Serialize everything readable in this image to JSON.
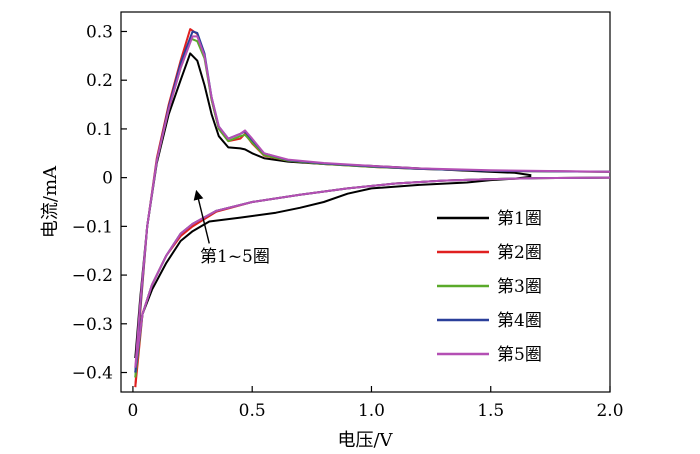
{
  "chart_data": {
    "type": "line",
    "title": "",
    "xlabel": "电压/V",
    "ylabel": "电流/mA",
    "xlim": [
      -0.05,
      2.0
    ],
    "ylim": [
      -0.44,
      0.34
    ],
    "xticks": [
      0,
      0.5,
      1.0,
      1.5,
      2.0
    ],
    "xtick_labels": [
      "0",
      "0.5",
      "1.0",
      "1.5",
      "2.0"
    ],
    "yticks": [
      -0.4,
      -0.3,
      -0.2,
      -0.1,
      0,
      0.1,
      0.2,
      0.3
    ],
    "ytick_labels": [
      "−0.4",
      "−0.3",
      "−0.2",
      "−0.1",
      "0",
      "0.1",
      "0.2",
      "0.3"
    ],
    "grid": false,
    "legend_position": "right",
    "annotation": {
      "text": "第1~5圈",
      "arrow_from": [
        0.32,
        -0.135
      ],
      "arrow_to": [
        0.27,
        -0.035
      ]
    },
    "series": [
      {
        "name": "第1圈",
        "color": "#000000",
        "upper": [
          [
            0.01,
            -0.37
          ],
          [
            0.03,
            -0.25
          ],
          [
            0.06,
            -0.1
          ],
          [
            0.1,
            0.03
          ],
          [
            0.15,
            0.13
          ],
          [
            0.2,
            0.2
          ],
          [
            0.24,
            0.255
          ],
          [
            0.27,
            0.24
          ],
          [
            0.3,
            0.19
          ],
          [
            0.33,
            0.13
          ],
          [
            0.36,
            0.085
          ],
          [
            0.4,
            0.062
          ],
          [
            0.45,
            0.06
          ],
          [
            0.47,
            0.058
          ],
          [
            0.5,
            0.05
          ],
          [
            0.55,
            0.04
          ],
          [
            0.65,
            0.033
          ],
          [
            0.8,
            0.028
          ],
          [
            1.0,
            0.024
          ],
          [
            1.2,
            0.019
          ],
          [
            1.4,
            0.014
          ],
          [
            1.6,
            0.01
          ],
          [
            1.67,
            0.005
          ]
        ],
        "lower": [
          [
            0.01,
            -0.37
          ],
          [
            0.04,
            -0.28
          ],
          [
            0.08,
            -0.23
          ],
          [
            0.14,
            -0.175
          ],
          [
            0.2,
            -0.13
          ],
          [
            0.25,
            -0.11
          ],
          [
            0.32,
            -0.09
          ],
          [
            0.45,
            -0.082
          ],
          [
            0.6,
            -0.072
          ],
          [
            0.7,
            -0.062
          ],
          [
            0.8,
            -0.05
          ],
          [
            0.9,
            -0.033
          ],
          [
            1.0,
            -0.022
          ],
          [
            1.2,
            -0.015
          ],
          [
            1.4,
            -0.01
          ],
          [
            1.5,
            -0.005
          ],
          [
            1.6,
            -0.002
          ],
          [
            1.67,
            0.002
          ]
        ]
      },
      {
        "name": "第2圈",
        "color": "#e02020",
        "upper": [
          [
            0.01,
            -0.43
          ],
          [
            0.03,
            -0.28
          ],
          [
            0.06,
            -0.1
          ],
          [
            0.1,
            0.04
          ],
          [
            0.15,
            0.15
          ],
          [
            0.2,
            0.24
          ],
          [
            0.24,
            0.305
          ],
          [
            0.27,
            0.295
          ],
          [
            0.3,
            0.25
          ],
          [
            0.33,
            0.16
          ],
          [
            0.36,
            0.1
          ],
          [
            0.4,
            0.075
          ],
          [
            0.45,
            0.08
          ],
          [
            0.47,
            0.09
          ],
          [
            0.5,
            0.07
          ],
          [
            0.55,
            0.045
          ],
          [
            0.65,
            0.035
          ],
          [
            0.8,
            0.028
          ],
          [
            1.0,
            0.022
          ],
          [
            1.2,
            0.018
          ],
          [
            1.5,
            0.014
          ],
          [
            2.0,
            0.012
          ]
        ],
        "lower": [
          [
            0.01,
            -0.43
          ],
          [
            0.04,
            -0.28
          ],
          [
            0.08,
            -0.22
          ],
          [
            0.14,
            -0.16
          ],
          [
            0.2,
            -0.12
          ],
          [
            0.25,
            -0.1
          ],
          [
            0.35,
            -0.07
          ],
          [
            0.5,
            -0.05
          ],
          [
            0.7,
            -0.035
          ],
          [
            0.9,
            -0.022
          ],
          [
            1.1,
            -0.012
          ],
          [
            1.3,
            -0.006
          ],
          [
            1.5,
            -0.003
          ],
          [
            1.7,
            -0.001
          ],
          [
            2.0,
            0.0
          ]
        ]
      },
      {
        "name": "第3圈",
        "color": "#5aaa2a",
        "upper": [
          [
            0.01,
            -0.41
          ],
          [
            0.03,
            -0.27
          ],
          [
            0.06,
            -0.1
          ],
          [
            0.1,
            0.035
          ],
          [
            0.15,
            0.14
          ],
          [
            0.2,
            0.225
          ],
          [
            0.245,
            0.285
          ],
          [
            0.27,
            0.28
          ],
          [
            0.3,
            0.245
          ],
          [
            0.33,
            0.16
          ],
          [
            0.36,
            0.1
          ],
          [
            0.4,
            0.075
          ],
          [
            0.45,
            0.085
          ],
          [
            0.47,
            0.088
          ],
          [
            0.5,
            0.072
          ],
          [
            0.55,
            0.046
          ],
          [
            0.65,
            0.035
          ],
          [
            0.8,
            0.028
          ],
          [
            1.0,
            0.022
          ],
          [
            1.2,
            0.018
          ],
          [
            1.5,
            0.014
          ],
          [
            2.0,
            0.012
          ]
        ],
        "lower": [
          [
            0.01,
            -0.41
          ],
          [
            0.04,
            -0.28
          ],
          [
            0.08,
            -0.22
          ],
          [
            0.14,
            -0.16
          ],
          [
            0.2,
            -0.115
          ],
          [
            0.25,
            -0.095
          ],
          [
            0.35,
            -0.068
          ],
          [
            0.5,
            -0.05
          ],
          [
            0.7,
            -0.035
          ],
          [
            0.9,
            -0.022
          ],
          [
            1.1,
            -0.012
          ],
          [
            1.3,
            -0.006
          ],
          [
            1.5,
            -0.003
          ],
          [
            1.7,
            -0.001
          ],
          [
            2.0,
            0.0
          ]
        ]
      },
      {
        "name": "第4圈",
        "color": "#2a3f9a",
        "upper": [
          [
            0.01,
            -0.4
          ],
          [
            0.03,
            -0.27
          ],
          [
            0.06,
            -0.1
          ],
          [
            0.1,
            0.035
          ],
          [
            0.15,
            0.145
          ],
          [
            0.2,
            0.235
          ],
          [
            0.25,
            0.3
          ],
          [
            0.27,
            0.297
          ],
          [
            0.3,
            0.255
          ],
          [
            0.33,
            0.165
          ],
          [
            0.36,
            0.105
          ],
          [
            0.4,
            0.08
          ],
          [
            0.45,
            0.09
          ],
          [
            0.47,
            0.095
          ],
          [
            0.5,
            0.077
          ],
          [
            0.55,
            0.05
          ],
          [
            0.65,
            0.036
          ],
          [
            0.8,
            0.029
          ],
          [
            1.0,
            0.023
          ],
          [
            1.2,
            0.018
          ],
          [
            1.5,
            0.014
          ],
          [
            2.0,
            0.012
          ]
        ],
        "lower": [
          [
            0.01,
            -0.4
          ],
          [
            0.04,
            -0.28
          ],
          [
            0.08,
            -0.22
          ],
          [
            0.14,
            -0.16
          ],
          [
            0.2,
            -0.115
          ],
          [
            0.25,
            -0.095
          ],
          [
            0.35,
            -0.068
          ],
          [
            0.5,
            -0.05
          ],
          [
            0.7,
            -0.035
          ],
          [
            0.9,
            -0.022
          ],
          [
            1.1,
            -0.012
          ],
          [
            1.3,
            -0.006
          ],
          [
            1.5,
            -0.003
          ],
          [
            1.7,
            -0.001
          ],
          [
            2.0,
            0.0
          ]
        ]
      },
      {
        "name": "第5圈",
        "color": "#b44fb4",
        "upper": [
          [
            0.01,
            -0.39
          ],
          [
            0.03,
            -0.26
          ],
          [
            0.06,
            -0.1
          ],
          [
            0.1,
            0.035
          ],
          [
            0.15,
            0.14
          ],
          [
            0.2,
            0.225
          ],
          [
            0.25,
            0.29
          ],
          [
            0.27,
            0.29
          ],
          [
            0.3,
            0.25
          ],
          [
            0.33,
            0.165
          ],
          [
            0.36,
            0.105
          ],
          [
            0.4,
            0.08
          ],
          [
            0.45,
            0.09
          ],
          [
            0.47,
            0.097
          ],
          [
            0.5,
            0.08
          ],
          [
            0.55,
            0.05
          ],
          [
            0.65,
            0.037
          ],
          [
            0.8,
            0.03
          ],
          [
            1.0,
            0.024
          ],
          [
            1.2,
            0.019
          ],
          [
            1.5,
            0.015
          ],
          [
            2.0,
            0.012
          ]
        ],
        "lower": [
          [
            0.01,
            -0.39
          ],
          [
            0.04,
            -0.28
          ],
          [
            0.08,
            -0.22
          ],
          [
            0.14,
            -0.16
          ],
          [
            0.2,
            -0.115
          ],
          [
            0.25,
            -0.095
          ],
          [
            0.35,
            -0.068
          ],
          [
            0.5,
            -0.05
          ],
          [
            0.7,
            -0.035
          ],
          [
            0.9,
            -0.022
          ],
          [
            1.1,
            -0.012
          ],
          [
            1.3,
            -0.006
          ],
          [
            1.5,
            -0.003
          ],
          [
            1.7,
            -0.001
          ],
          [
            2.0,
            0.0
          ]
        ]
      }
    ]
  }
}
